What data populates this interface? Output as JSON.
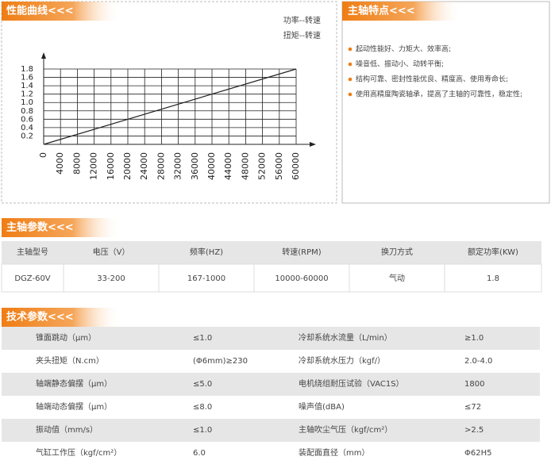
{
  "chart_data": {
    "type": "line",
    "title": "性能曲线<<<",
    "annotations": [
      "功率--转速",
      "扭矩--转速"
    ],
    "x": [
      0,
      60000
    ],
    "series": [
      {
        "color": "#222222",
        "values": [
          0,
          1.8
        ]
      }
    ],
    "xlim": [
      0,
      60000
    ],
    "ylim": [
      0,
      1.8
    ],
    "xticks": [
      0,
      4000,
      8000,
      12000,
      16000,
      20000,
      24000,
      28000,
      32000,
      36000,
      40000,
      44000,
      48000,
      52000,
      56000,
      60000
    ],
    "yticks": [
      0.2,
      0.4,
      0.6,
      0.8,
      {
        "value": 1,
        "label": "1.0"
      },
      1.2,
      1.4,
      1.6,
      1.8
    ],
    "grid": true
  },
  "features": {
    "title": "主轴特点<<<",
    "items": [
      "起动性能好、力矩大、效率高;",
      "噪音低、振动小、动转平衡;",
      "结构可靠、密封性能优良、精度高、使用寿命长;",
      "使用高精度陶瓷轴承，提高了主轴的可靠性，稳定性;"
    ]
  },
  "spindle_params": {
    "title": "主轴参数<<<",
    "header": [
      "主轴型号",
      "电压（V）",
      "频率(HZ)",
      "转速(RPM)",
      "换刀方式",
      "额定功率(KW)"
    ],
    "rows": [
      [
        "DGZ-60V",
        "33-200",
        "167-1000",
        "10000-60000",
        "气动",
        "1.8"
      ]
    ]
  },
  "tech_params": {
    "title": "技术参数<<<",
    "rows": [
      [
        "锥面跳动（μm）",
        "≤1.0",
        "冷却系统水流量（L/min）",
        "≥1.0"
      ],
      [
        "夹头扭矩（N.cm）",
        "(Φ6mm)≥230",
        "冷却系统水压力（kgf/）",
        "2.0-4.0"
      ],
      [
        "轴端静态偏摆（μm）",
        "≤5.0",
        "电机绕组耐压试验（VAC1S）",
        "1800"
      ],
      [
        "轴端动态偏摆（μm）",
        "≤8.0",
        "噪声值(dBA)",
        "≤72"
      ],
      [
        "振动值（mm/s）",
        "≤1.0",
        "主轴吹尘气压（kgf/cm²）",
        ">2.5"
      ],
      [
        "气缸工作压（kgf/cm²）",
        "6.0",
        "装配面直径（mm）",
        "Φ62H5"
      ]
    ]
  }
}
